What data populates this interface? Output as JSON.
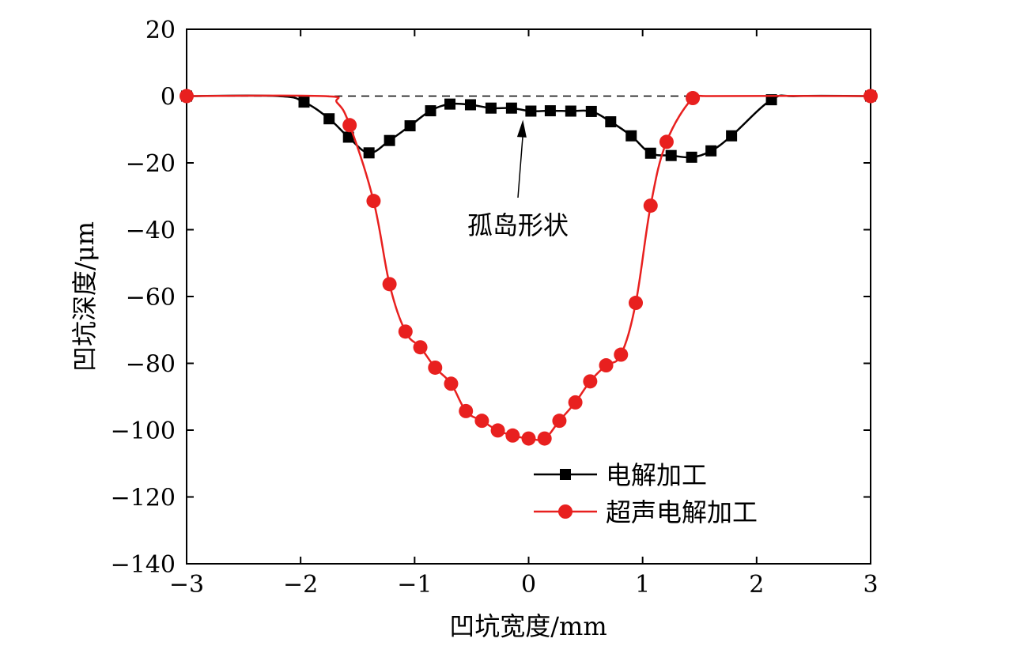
{
  "chart_data": {
    "type": "line",
    "title": "",
    "xlabel": "凹坑宽度/mm",
    "ylabel": "凹坑深度/μm",
    "xlim": [
      -3,
      3
    ],
    "ylim": [
      -140,
      20
    ],
    "xticks": [
      -3,
      -2,
      -1,
      0,
      1,
      2,
      3
    ],
    "yticks": [
      20,
      0,
      -20,
      -40,
      -60,
      -80,
      -100,
      -120,
      -140
    ],
    "xtick_labels": [
      "−3",
      "−2",
      "−1",
      "0",
      "1",
      "2",
      "3"
    ],
    "ytick_labels": [
      "20",
      "0",
      "−20",
      "−40",
      "−60",
      "−80",
      "−100",
      "−120",
      "−140"
    ],
    "grid": false,
    "legend_position": "bottom-right",
    "reference_line": {
      "y": 0,
      "style": "dashed"
    },
    "series": [
      {
        "name": "电解加工",
        "color": "#000000",
        "marker": "square",
        "x": [
          -3.0,
          -1.97,
          -1.75,
          -1.58,
          -1.4,
          -1.22,
          -1.04,
          -0.86,
          -0.69,
          -0.51,
          -0.33,
          -0.15,
          0.02,
          0.19,
          0.37,
          0.55,
          0.72,
          0.9,
          1.07,
          1.25,
          1.43,
          1.6,
          1.78,
          2.13,
          3.0
        ],
        "y": [
          0,
          -1.8,
          -6.8,
          -12.3,
          -17.0,
          -13.3,
          -8.9,
          -4.4,
          -2.4,
          -2.6,
          -3.6,
          -3.6,
          -4.5,
          -4.4,
          -4.5,
          -4.6,
          -7.7,
          -11.9,
          -17.1,
          -17.8,
          -18.3,
          -16.4,
          -11.9,
          -1.1,
          0
        ]
      },
      {
        "name": "超声电解加工",
        "color": "#e8201f",
        "marker": "circle",
        "x": [
          -3.0,
          -1.57,
          -1.36,
          -1.22,
          -1.08,
          -0.95,
          -0.82,
          -0.68,
          -0.55,
          -0.41,
          -0.27,
          -0.14,
          0.0,
          0.14,
          0.27,
          0.41,
          0.54,
          0.68,
          0.81,
          0.94,
          1.07,
          1.21,
          1.44,
          3.0
        ],
        "y": [
          0,
          -8.7,
          -31.4,
          -56.3,
          -70.5,
          -75.2,
          -81.3,
          -86.1,
          -94.3,
          -97.2,
          -100.1,
          -101.6,
          -102.5,
          -102.5,
          -97.2,
          -91.7,
          -85.4,
          -80.6,
          -77.4,
          -61.9,
          -32.8,
          -13.7,
          -0.6,
          0
        ]
      }
    ],
    "annotations": [
      {
        "text": "孤岛形状",
        "points_to": {
          "x": -0.05,
          "y": -3.8
        }
      }
    ]
  }
}
